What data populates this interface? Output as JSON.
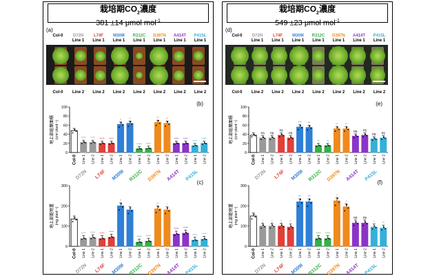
{
  "left": {
    "title": "栽培期CO",
    "title_sub": "2",
    "title_suffix": "濃度",
    "conc_value": "381 ±14 μmol mol",
    "conc_sup": "-1",
    "photo_letter": "(a)",
    "bar1_letter": "(b)",
    "bar2_letter": "(c)",
    "top_labels": [
      {
        "a": "Col-0",
        "b": ""
      },
      {
        "a": "D72N",
        "b": "Line 1"
      },
      {
        "a": "L74F",
        "b": "Line 1"
      },
      {
        "a": "M309I",
        "b": "Line 1"
      },
      {
        "a": "R312C",
        "b": "Line 1"
      },
      {
        "a": "D397N",
        "b": "Line 1"
      },
      {
        "a": "A414T",
        "b": "Line 1"
      },
      {
        "a": "P415L",
        "b": "Line 1"
      }
    ],
    "bottom_labels": [
      "Col-0",
      "Line 2",
      "Line 2",
      "Line 2",
      "Line 2",
      "Line 2",
      "Line 2",
      "Line 2"
    ]
  },
  "right": {
    "title": "栽培期CO",
    "title_sub": "2",
    "title_suffix": "濃度",
    "conc_value": "549 ±23 μmol mol",
    "conc_sup": "-1",
    "photo_letter": "(d)",
    "bar1_letter": "(e)",
    "bar2_letter": "(f)",
    "top_labels": [
      {
        "a": "Col-0",
        "b": ""
      },
      {
        "a": "D72N",
        "b": "Line 1"
      },
      {
        "a": "L74F",
        "b": "Line 1"
      },
      {
        "a": "M309I",
        "b": "Line 1"
      },
      {
        "a": "R312C",
        "b": "Line 1"
      },
      {
        "a": "D397N",
        "b": "Line 1"
      },
      {
        "a": "A414T",
        "b": "Line 1"
      },
      {
        "a": "P415L",
        "b": "Line 1"
      }
    ],
    "bottom_labels": [
      "Col-0",
      "Line 2",
      "Line 2",
      "Line 2",
      "Line 2",
      "Line 2",
      "Line 2",
      "Line 2"
    ]
  },
  "genotype_colors": {
    "Col-0": "#000000",
    "D72N": "#9a9a9a",
    "L74F": "#e0403a",
    "M309I": "#2e7fd6",
    "R312C": "#35b04a",
    "D397N": "#ef8a1e",
    "A414T": "#8c34c8",
    "P415L": "#35b0d8"
  },
  "chart_data": [
    {
      "type": "bar",
      "panel": "(b)",
      "ylabel": "地上部総葉面積",
      "ylabel_unit": "(cm² plant⁻¹)",
      "ylim": [
        0,
        100
      ],
      "yticks": [
        0,
        20,
        40,
        60,
        80,
        100
      ],
      "groups": [
        "Col-0",
        "D72N",
        "L74F",
        "M309I",
        "R312C",
        "D397N",
        "A414T",
        "P415L"
      ],
      "categories": [
        "Col-0",
        "Line 1",
        "Line 2",
        "Line 1",
        "Line 2",
        "Line 1",
        "Line 2",
        "Line 1",
        "Line 2",
        "Line 1",
        "Line 2",
        "Line 1",
        "Line 2",
        "Line 1",
        "Line 2"
      ],
      "values": [
        48,
        22,
        22,
        20,
        20,
        62,
        64,
        8,
        9,
        66,
        64,
        20,
        20,
        15,
        20
      ],
      "marks": [
        "",
        "****",
        "****",
        "****",
        "****",
        "*",
        "*",
        "****",
        "****",
        "**",
        "**",
        "****",
        "****",
        "****",
        "****"
      ]
    },
    {
      "type": "bar",
      "panel": "(c)",
      "ylabel": "地上部乾物重",
      "ylabel_unit": "(mg plant⁻¹)",
      "ylim": [
        0,
        300
      ],
      "yticks": [
        0,
        100,
        200,
        300
      ],
      "groups": [
        "Col-0",
        "D72N",
        "L74F",
        "M309I",
        "R312C",
        "D397N",
        "A414T",
        "P415L"
      ],
      "categories": [
        "Col-0",
        "Line 1",
        "Line 2",
        "Line 1",
        "Line 2",
        "Line 1",
        "Line 2",
        "Line 1",
        "Line 2",
        "Line 1",
        "Line 2",
        "Line 1",
        "Line 2",
        "Line 1",
        "Line 2"
      ],
      "values": [
        135,
        38,
        42,
        38,
        45,
        200,
        180,
        20,
        25,
        185,
        180,
        60,
        65,
        30,
        35
      ],
      "marks": [
        "",
        "****",
        "****",
        "****",
        "****",
        "*",
        "",
        "****",
        "****",
        "**",
        "*",
        "****",
        "****",
        "****",
        "****"
      ]
    },
    {
      "type": "bar",
      "panel": "(e)",
      "ylabel": "地上部総葉面積",
      "ylabel_unit": "(cm² plant⁻¹)",
      "ylim": [
        0,
        100
      ],
      "yticks": [
        0,
        20,
        40,
        60,
        80,
        100
      ],
      "groups": [
        "Col-0",
        "D72N",
        "L74F",
        "M309I",
        "R312C",
        "D397N",
        "A414T",
        "P415L"
      ],
      "categories": [
        "Col-0",
        "Line 1",
        "Line 2",
        "Line 1",
        "Line 2",
        "Line 1",
        "Line 2",
        "Line 1",
        "Line 2",
        "Line 1",
        "Line 2",
        "Line 1",
        "Line 2",
        "Line 1",
        "Line 2"
      ],
      "values": [
        38,
        32,
        32,
        38,
        32,
        56,
        55,
        15,
        15,
        52,
        52,
        36,
        38,
        30,
        32
      ],
      "marks": [
        "",
        "ns",
        "ns",
        "ns",
        "ns",
        "***",
        "**",
        "**",
        "**",
        "**",
        "**",
        "ns",
        "ns",
        "ns",
        "ns"
      ]
    },
    {
      "type": "bar",
      "panel": "(f)",
      "ylabel": "地上部乾物重",
      "ylabel_unit": "(mg plant⁻¹)",
      "ylim": [
        0,
        300
      ],
      "yticks": [
        0,
        100,
        200,
        300
      ],
      "groups": [
        "Col-0",
        "D72N",
        "L74F",
        "M309I",
        "R312C",
        "D397N",
        "A414T",
        "P415L"
      ],
      "categories": [
        "Col-0",
        "Line 1",
        "Line 2",
        "Line 1",
        "Line 2",
        "Line 1",
        "Line 2",
        "Line 1",
        "Line 2",
        "Line 1",
        "Line 2",
        "Line 1",
        "Line 2",
        "Line 1",
        "Line 2"
      ],
      "values": [
        150,
        100,
        100,
        100,
        95,
        220,
        220,
        38,
        38,
        225,
        195,
        115,
        115,
        95,
        90
      ],
      "marks": [
        "",
        "*",
        "*",
        "*",
        "*",
        "**",
        "**",
        "****",
        "****",
        "*",
        "*",
        "ns",
        "ns",
        "*",
        "**"
      ]
    }
  ]
}
